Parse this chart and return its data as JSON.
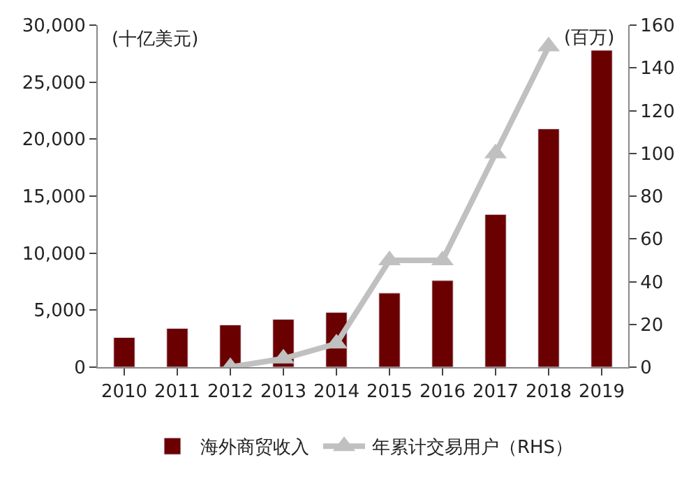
{
  "chart_data": {
    "type": "bar",
    "categories": [
      "2010",
      "2011",
      "2012",
      "2013",
      "2014",
      "2015",
      "2016",
      "2017",
      "2018",
      "2019"
    ],
    "series": [
      {
        "name": "海外商贸收入",
        "color": "#6b0000",
        "values": [
          2600,
          3400,
          3700,
          4200,
          4800,
          6500,
          7600,
          13400,
          20900,
          27800
        ]
      },
      {
        "name": "年累计交易用户（RHS）",
        "type": "line",
        "axis": "y2",
        "color": "#c0c0c0",
        "marker": "triangle",
        "values": [
          null,
          null,
          0,
          4,
          11,
          50,
          50,
          100,
          150,
          null
        ]
      }
    ],
    "ylim": [
      0,
      30000
    ],
    "yticks": [
      {
        "value": 0,
        "label": "0"
      },
      {
        "value": 5000,
        "label": "5,000"
      },
      {
        "value": 10000,
        "label": "10,000"
      },
      {
        "value": 15000,
        "label": "15,000"
      },
      {
        "value": 20000,
        "label": "20,000"
      },
      {
        "value": 25000,
        "label": "25,000"
      },
      {
        "value": 30000,
        "label": "30,000"
      }
    ],
    "y2lim": [
      0,
      160
    ],
    "y2ticks": [
      0,
      20,
      40,
      60,
      80,
      100,
      120,
      140,
      160
    ],
    "annotations": [
      "(十亿美元)",
      "(百万)"
    ],
    "legend": "bottom"
  }
}
